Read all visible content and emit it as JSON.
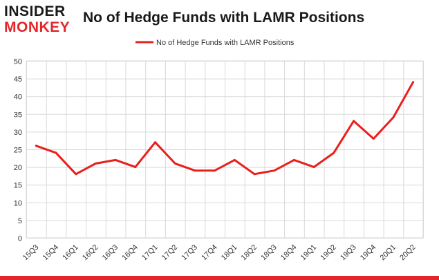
{
  "logo": {
    "line1": "INSIDER",
    "line2": "MONKEY"
  },
  "colors": {
    "series": "#e8201c",
    "grid": "#d9d9d9",
    "axis_text": "#333333",
    "footer": "#e5252a"
  },
  "chart_data": {
    "type": "line",
    "title": "No of Hedge Funds with LAMR Positions",
    "xlabel": "",
    "ylabel": "",
    "ylim": [
      0,
      50
    ],
    "yticks": [
      0,
      5,
      10,
      15,
      20,
      25,
      30,
      35,
      40,
      45,
      50
    ],
    "grid": true,
    "legend_position": "top-center",
    "categories": [
      "15Q3",
      "15Q4",
      "16Q1",
      "16Q2",
      "16Q3",
      "16Q4",
      "17Q1",
      "17Q2",
      "17Q3",
      "17Q4",
      "18Q1",
      "18Q2",
      "18Q3",
      "18Q4",
      "19Q1",
      "19Q2",
      "19Q3",
      "19Q4",
      "20Q1",
      "20Q2"
    ],
    "series": [
      {
        "name": "No of Hedge Funds with LAMR Positions",
        "values": [
          26,
          24,
          18,
          21,
          22,
          20,
          27,
          21,
          19,
          19,
          22,
          18,
          19,
          22,
          20,
          24,
          33,
          28,
          34,
          44
        ]
      }
    ]
  }
}
